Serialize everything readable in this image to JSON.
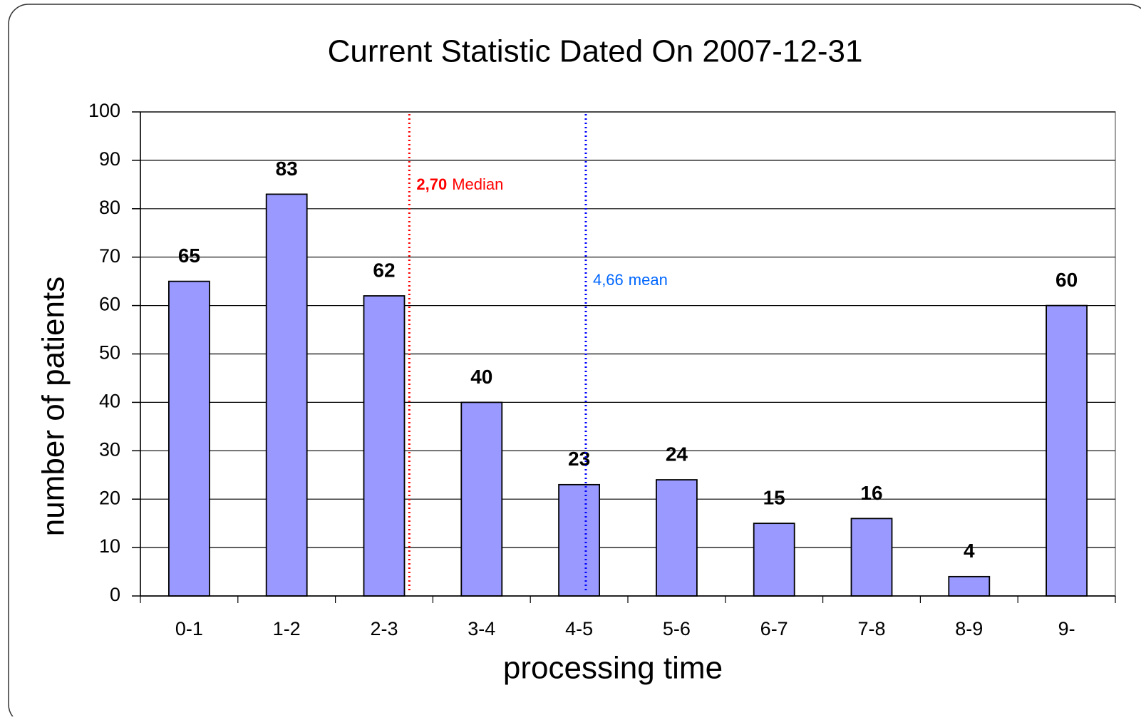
{
  "chart_data": {
    "type": "bar",
    "title": "Current Statistic Dated On 2007-12-31",
    "x_label": "processing time",
    "y_label": "number of patients",
    "categories": [
      "0-1",
      "1-2",
      "2-3",
      "3-4",
      "4-5",
      "5-6",
      "6-7",
      "7-8",
      "8-9",
      "9-"
    ],
    "values": [
      65,
      83,
      62,
      40,
      23,
      24,
      15,
      16,
      4,
      60
    ],
    "color": "#9999ff",
    "ylim": [
      0,
      100
    ],
    "yticks": [
      0,
      10,
      20,
      30,
      40,
      50,
      60,
      70,
      80,
      90,
      100
    ],
    "grid": true,
    "reference_lines": [
      {
        "value": 2.7,
        "label": "2,70",
        "name": "Median",
        "color": "#ff0000"
      },
      {
        "value": 4.66,
        "label": "4,66",
        "name": "mean",
        "color": "#0000ff"
      }
    ]
  }
}
